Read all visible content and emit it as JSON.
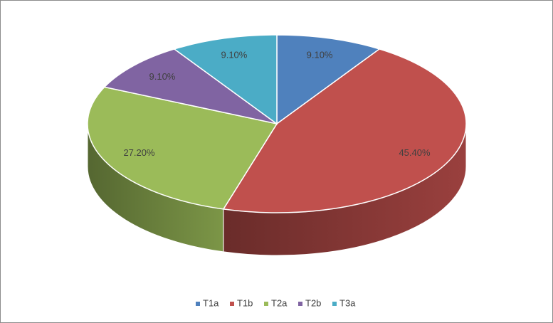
{
  "chart_data": {
    "type": "pie",
    "categories": [
      "T1a",
      "T1b",
      "T2a",
      "T2b",
      "T3a"
    ],
    "values": [
      9.1,
      45.4,
      27.2,
      9.1,
      9.1
    ],
    "value_labels": [
      "9.10%",
      "45.40%",
      "27.20%",
      "9.10%",
      "9.10%"
    ],
    "colors": [
      "#4f81bd",
      "#c0504d",
      "#9bbb59",
      "#8064a2",
      "#4bacc6"
    ],
    "legend": "bottom"
  }
}
